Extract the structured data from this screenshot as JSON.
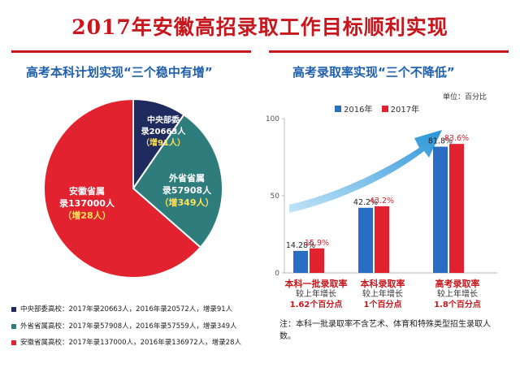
{
  "title": "2017年安徽高招录取工作目标顺利实现",
  "colors": {
    "red": "#c8161d",
    "blue": "#1f5fae",
    "navy": "#1f2b5e",
    "teal": "#2f7c7c",
    "bar2016": "#2b6dc2",
    "bar2017": "#e2222e"
  },
  "left": {
    "subtitle": "高考本科计划实现“三个稳中有增”",
    "chart_data": {
      "type": "pie",
      "slices": [
        {
          "name": "中央部委高校",
          "value": 20663,
          "label": "中央部委录20663人",
          "increase": "（增91人）",
          "color": "#1f2b5e"
        },
        {
          "name": "外省省属高校",
          "value": 57908,
          "label": "外省省属录57908人",
          "increase": "（增349人）",
          "color": "#2f7c7c"
        },
        {
          "name": "安徽省属高校",
          "value": 137000,
          "label": "安徽省属录137000人",
          "increase": "（增28人）",
          "color": "#e2222e"
        }
      ]
    },
    "legend": [
      {
        "text": "中央部委高校：2017年录20663人，2016年录20572人，增录91人",
        "color": "#1f2b5e"
      },
      {
        "text": "外省省属高校：2017年录57908人，2016年录57559人，增录349人",
        "color": "#2f7c7c"
      },
      {
        "text": "安徽省属高校：2017年录137000人，2016年录136972人，增录28人",
        "color": "#e2222e"
      }
    ],
    "pie_text": {
      "s0_a": "中央部委",
      "s0_b": "录20663人",
      "s0_c": "（增91人）",
      "s1_a": "外省省属",
      "s1_b": "录57908人",
      "s1_c": "（增349人）",
      "s2_a": "安徽省属",
      "s2_b": "录137000人",
      "s2_c": "（增28人）"
    }
  },
  "right": {
    "subtitle": "高考录取率实现“三个不降低”",
    "unit": "单位：百分比",
    "chart_data": {
      "type": "bar",
      "categories": [
        "本科一批录取率",
        "本科录取率",
        "高考录取率"
      ],
      "series": [
        {
          "name": "2016年",
          "values": [
            14.28,
            42.2,
            81.8
          ],
          "labels": [
            "14.28%",
            "42.2%",
            "81.8%"
          ]
        },
        {
          "name": "2017年",
          "values": [
            15.9,
            43.2,
            83.6
          ],
          "labels": [
            "15.9%",
            "43.2%",
            "83.6%"
          ]
        }
      ],
      "ylim": [
        0,
        100
      ],
      "yticks": [
        "0",
        "50",
        "100"
      ],
      "grid": false,
      "legend": "top"
    },
    "categories_detail": [
      {
        "name": "本科一批录取率",
        "desc": "较上年增长",
        "value": "1.62个百分点"
      },
      {
        "name": "本科录取率",
        "desc": "较上年增长",
        "value": "1个百分点"
      },
      {
        "name": "高考录取率",
        "desc": "较上年增长",
        "value": "1.8个百分点"
      }
    ],
    "note": "注：本科一批录取率不含艺术、体育和特殊类型招生录取人数。"
  }
}
